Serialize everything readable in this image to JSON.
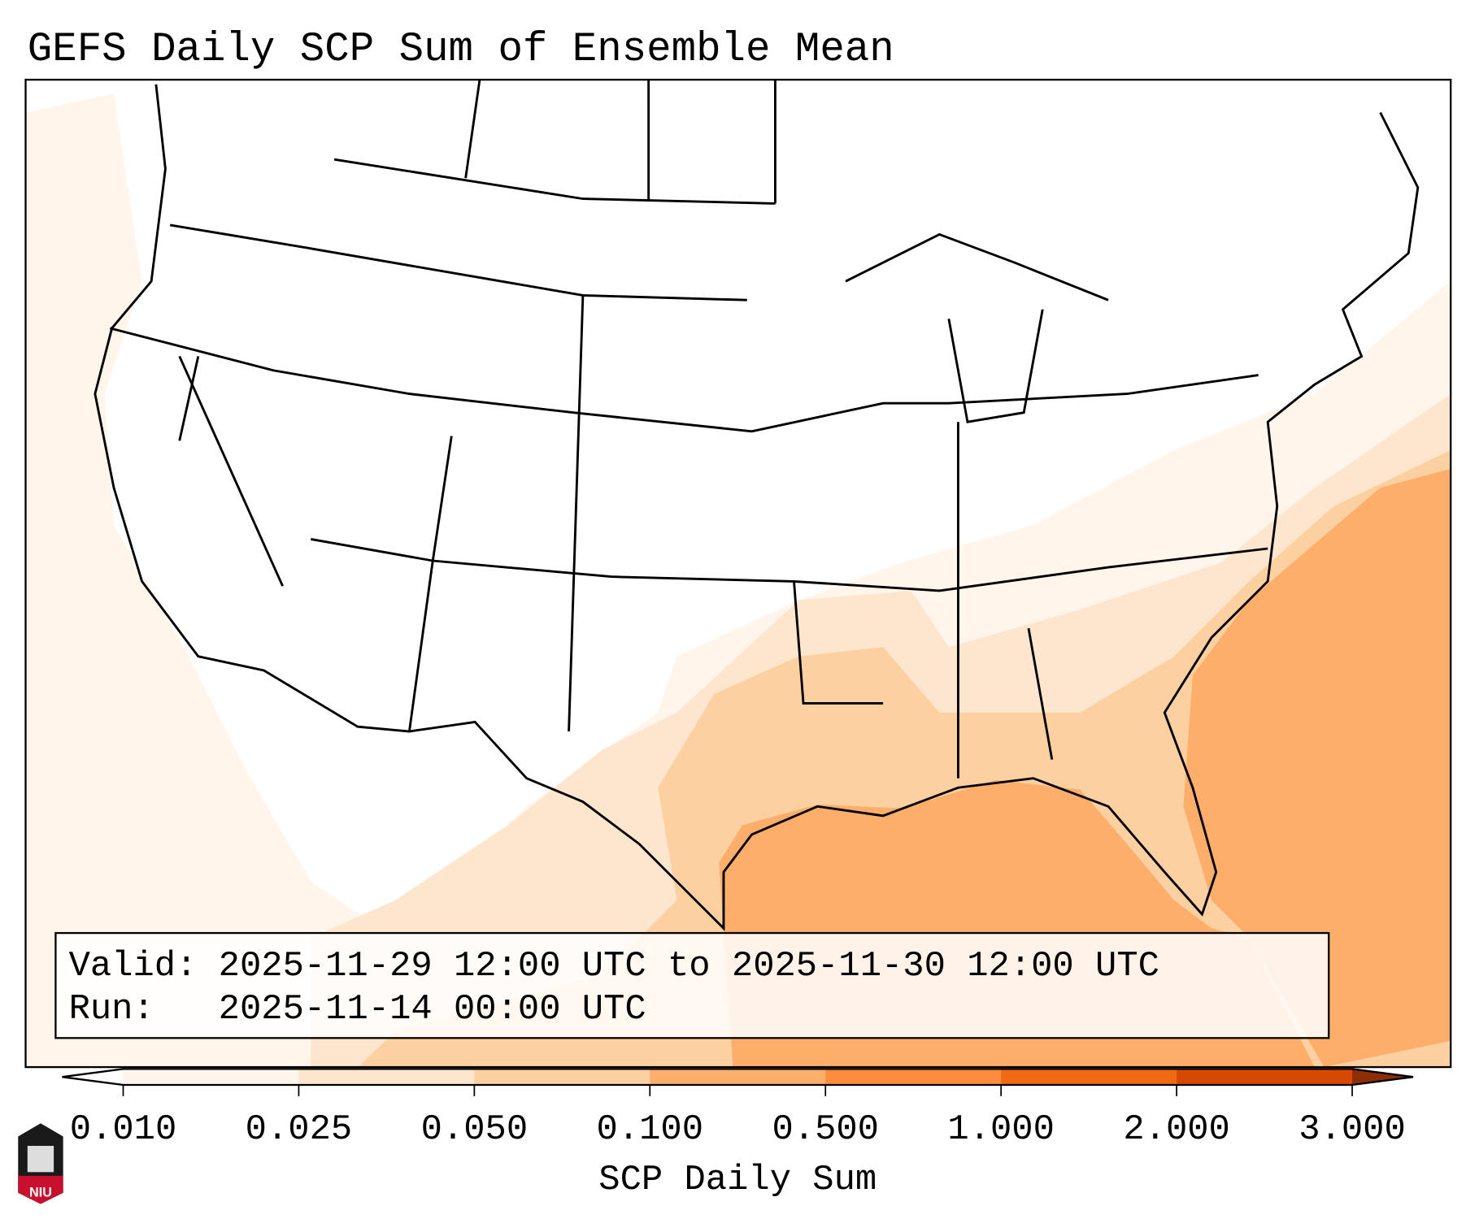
{
  "title": "GEFS Daily SCP Sum of Ensemble Mean",
  "info_box": {
    "valid_line": "Valid: 2025-11-29 12:00 UTC to 2025-11-30 12:00 UTC",
    "run_line": "Run:   2025-11-14 00:00 UTC"
  },
  "colorbar": {
    "label": "SCP Daily Sum",
    "ticks": [
      "0.010",
      "0.025",
      "0.050",
      "0.100",
      "0.500",
      "1.000",
      "2.000",
      "3.000"
    ],
    "under_color": "#ffffff",
    "colors": [
      "#fff5eb",
      "#fee6ce",
      "#fdd0a2",
      "#fdae6b",
      "#fd8d3c",
      "#f16913",
      "#d94801"
    ],
    "over_color": "#8c2d04"
  },
  "map_fill_colors": {
    "lightest": "#fff5eb",
    "light": "#fee6ce",
    "medium": "#fdd0a2",
    "strong": "#fdae6b"
  },
  "logo": {
    "text": "NIU",
    "color": "#c8102e"
  }
}
